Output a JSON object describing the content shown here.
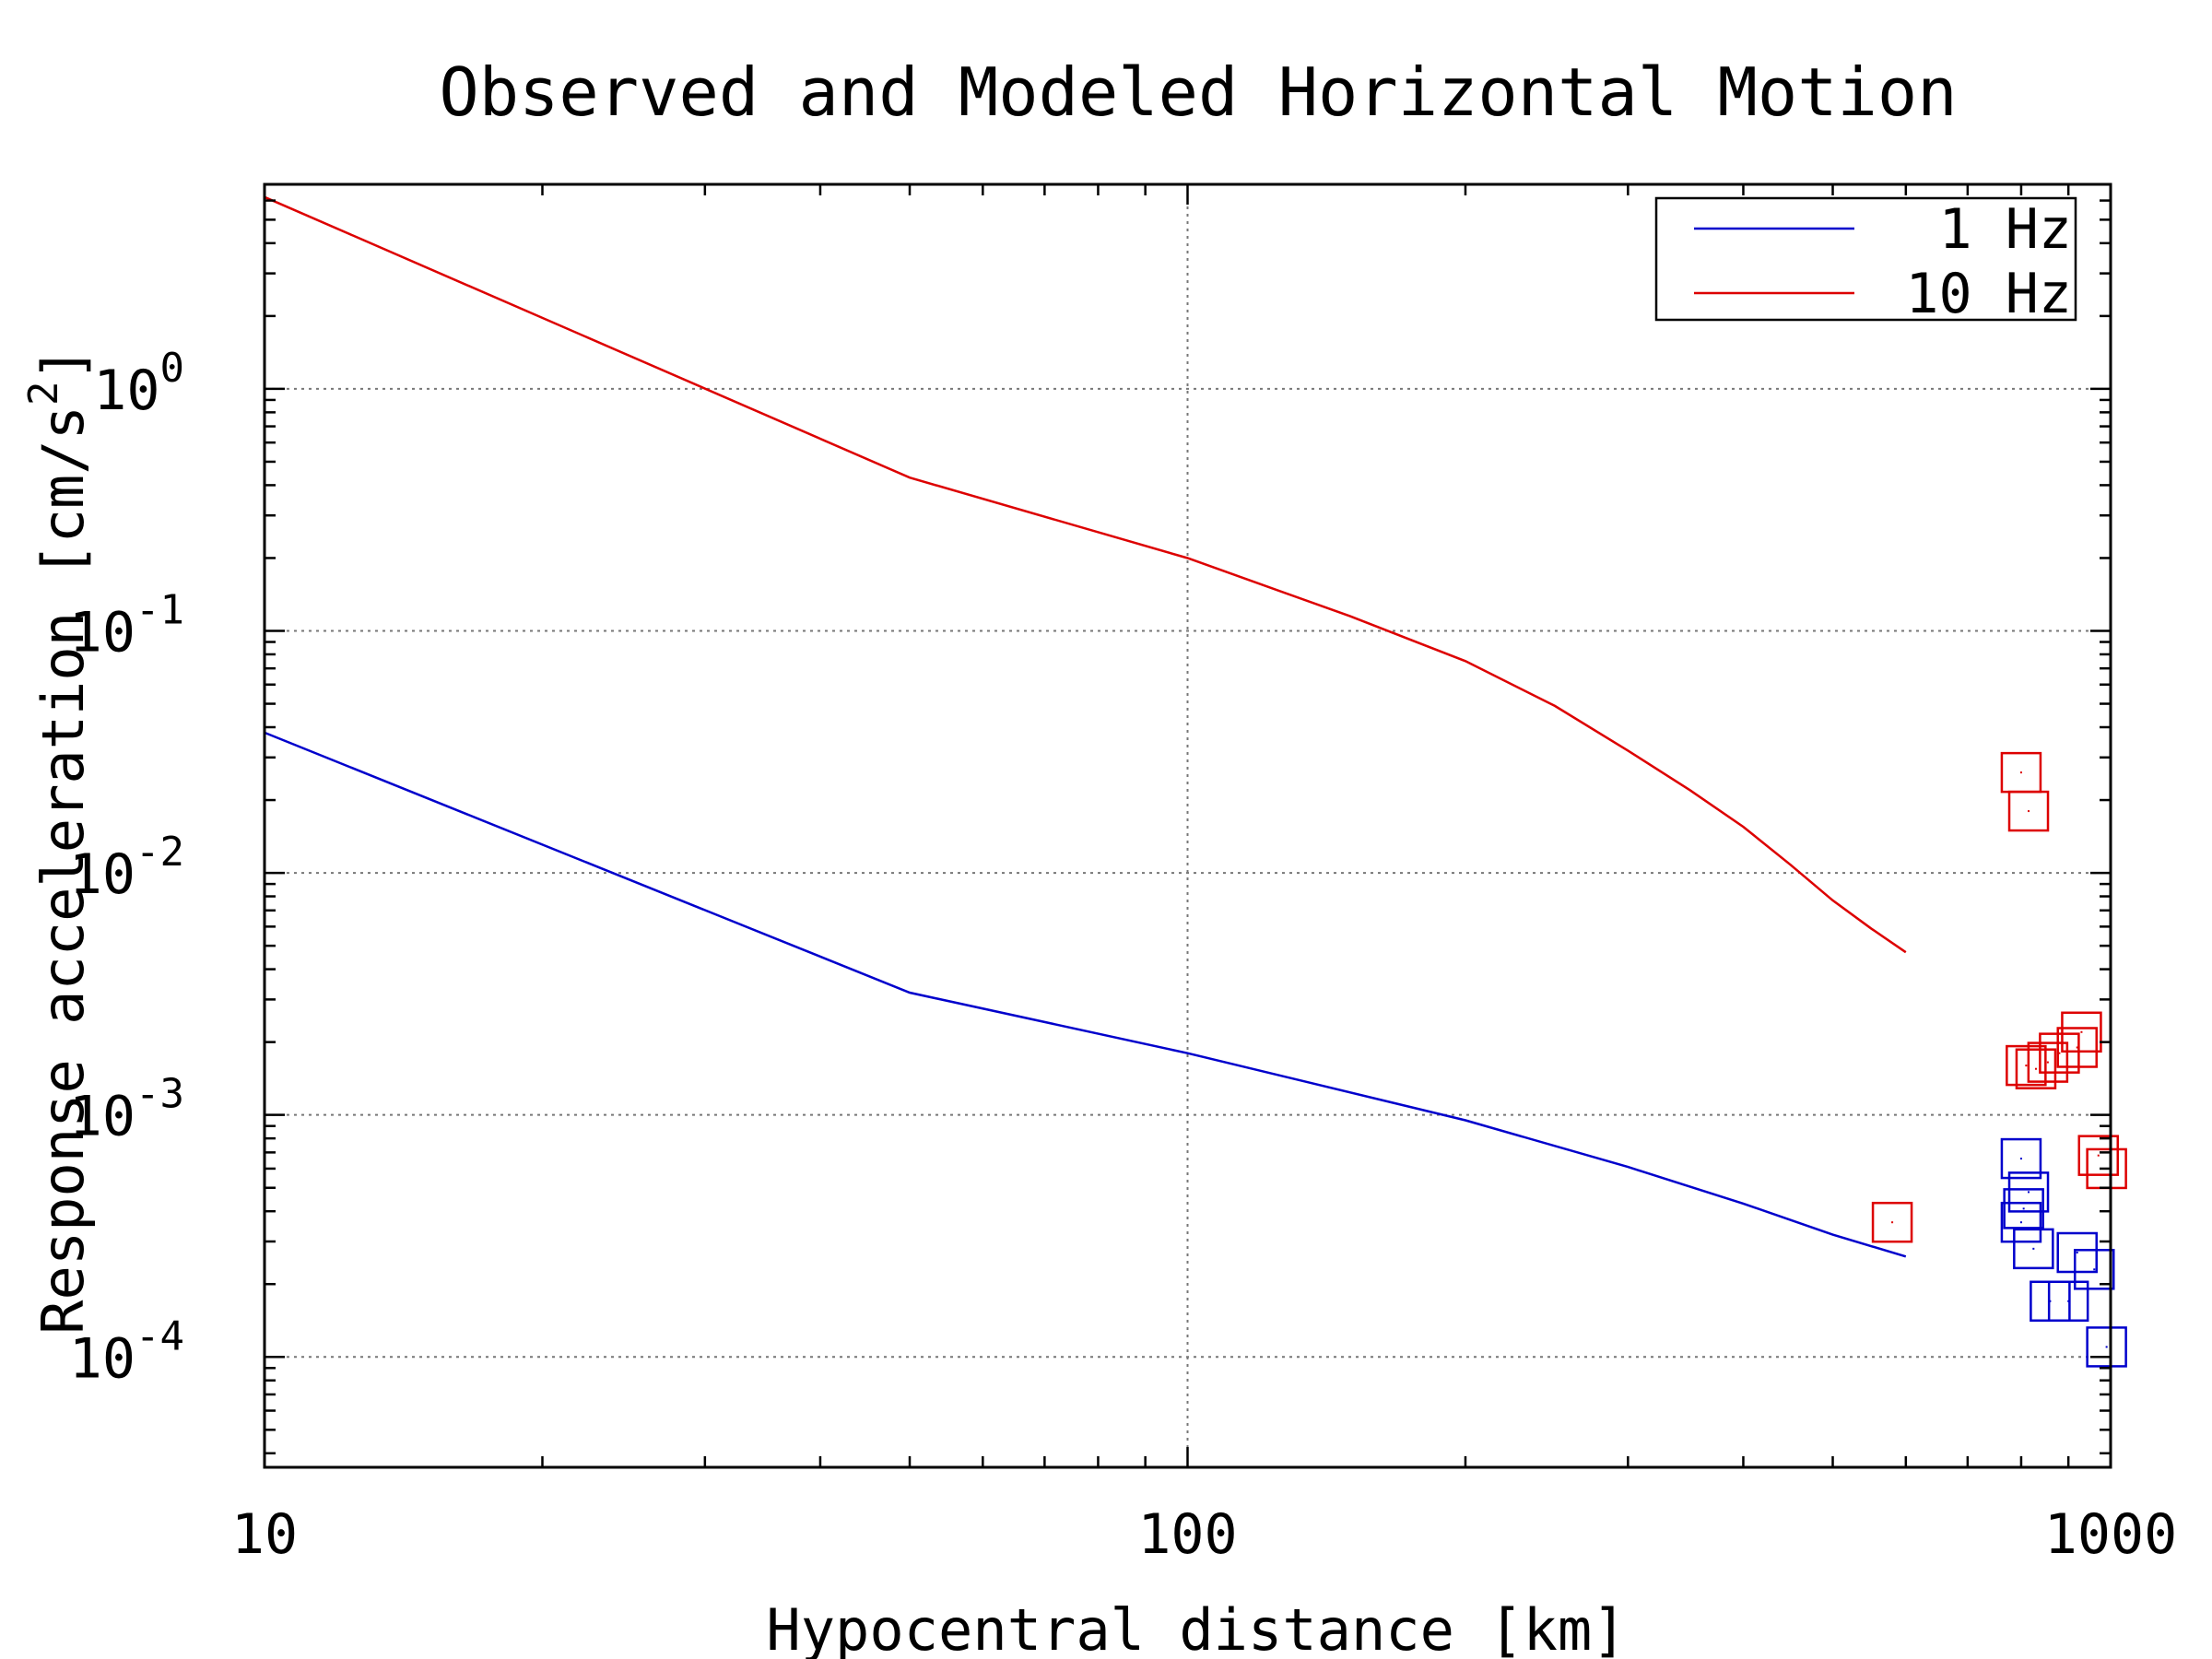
{
  "chart_data": {
    "type": "line",
    "title": "Observed and Modeled Horizontal Motion",
    "xlabel": "Hypocentral distance [km]",
    "ylabel": "Response acceleration [cm/s",
    "ylabel_superscript": "2",
    "ylabel_suffix": "]",
    "xscale": "log",
    "yscale": "log",
    "xlim": [
      10,
      1000
    ],
    "ylim": [
      3.5e-05,
      7
    ],
    "x_ticks": [
      {
        "value": 10,
        "label": "10"
      },
      {
        "value": 100,
        "label": "100"
      },
      {
        "value": 1000,
        "label": "1000"
      }
    ],
    "y_ticks": [
      {
        "value": 0.0001,
        "base": "10",
        "exp": "-4"
      },
      {
        "value": 0.001,
        "base": "10",
        "exp": "-3"
      },
      {
        "value": 0.01,
        "base": "10",
        "exp": "-2"
      },
      {
        "value": 0.1,
        "base": "10",
        "exp": "-1"
      },
      {
        "value": 1,
        "base": "10",
        "exp": "0"
      }
    ],
    "grid": true,
    "legend_position": "top-right",
    "series": [
      {
        "name": "1 Hz",
        "color": "#0000cc",
        "kind": "line",
        "x": [
          10,
          50,
          100,
          200,
          300,
          400,
          500,
          600
        ],
        "y": [
          0.038,
          0.0032,
          0.0018,
          0.00095,
          0.00061,
          0.00043,
          0.00032,
          0.00026
        ]
      },
      {
        "name": "10 Hz",
        "color": "#dd0000",
        "kind": "line",
        "x": [
          10,
          50,
          100,
          150,
          200,
          250,
          300,
          350,
          400,
          450,
          500,
          550,
          600
        ],
        "y": [
          6.2,
          0.43,
          0.2,
          0.115,
          0.075,
          0.049,
          0.032,
          0.022,
          0.0155,
          0.0108,
          0.0077,
          0.0059,
          0.0047
        ]
      },
      {
        "name": "",
        "color": "#dd0000",
        "kind": "observed",
        "x": [
          580,
          800,
          815,
          810,
          830,
          855,
          880,
          920,
          930,
          970,
          990
        ],
        "y": [
          0.00036,
          0.026,
          0.018,
          0.0016,
          0.00155,
          0.00165,
          0.0018,
          0.0019,
          0.0022,
          0.00068,
          0.0006
        ]
      },
      {
        "name": "",
        "color": "#0000cc",
        "kind": "observed",
        "x": [
          800,
          815,
          805,
          800,
          825,
          860,
          900,
          920,
          960,
          990
        ],
        "y": [
          0.00066,
          0.00048,
          0.00041,
          0.00036,
          0.00028,
          0.00017,
          0.00017,
          0.00027,
          0.00023,
          0.00011
        ]
      }
    ]
  }
}
